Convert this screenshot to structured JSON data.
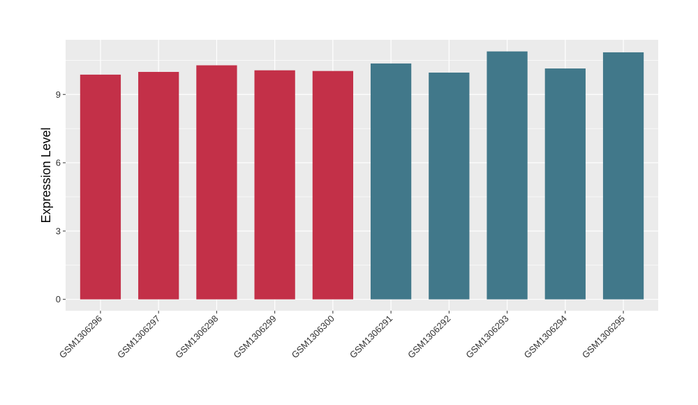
{
  "chart_data": {
    "type": "bar",
    "title": "",
    "xlabel": "",
    "ylabel": "Expression Level",
    "categories": [
      "GSM1306296",
      "GSM1306297",
      "GSM1306298",
      "GSM1306299",
      "GSM1306300",
      "GSM1306291",
      "GSM1306292",
      "GSM1306293",
      "GSM1306294",
      "GSM1306295"
    ],
    "values": [
      9.87,
      9.99,
      10.28,
      10.06,
      10.03,
      10.36,
      9.96,
      10.89,
      10.14,
      10.85
    ],
    "bar_colors": [
      "#c33048",
      "#c33048",
      "#c33048",
      "#c33048",
      "#c33048",
      "#41788a",
      "#41788a",
      "#41788a",
      "#41788a",
      "#41788a"
    ],
    "ylim": [
      -0.5,
      11.4
    ],
    "yticks": [
      0,
      3,
      6,
      9
    ],
    "ytick_labels": [
      "0",
      "3",
      "6",
      "9"
    ],
    "grid": true,
    "legend": "none",
    "panel_background": "#ebebeb",
    "grid_color": "#ffffff"
  }
}
